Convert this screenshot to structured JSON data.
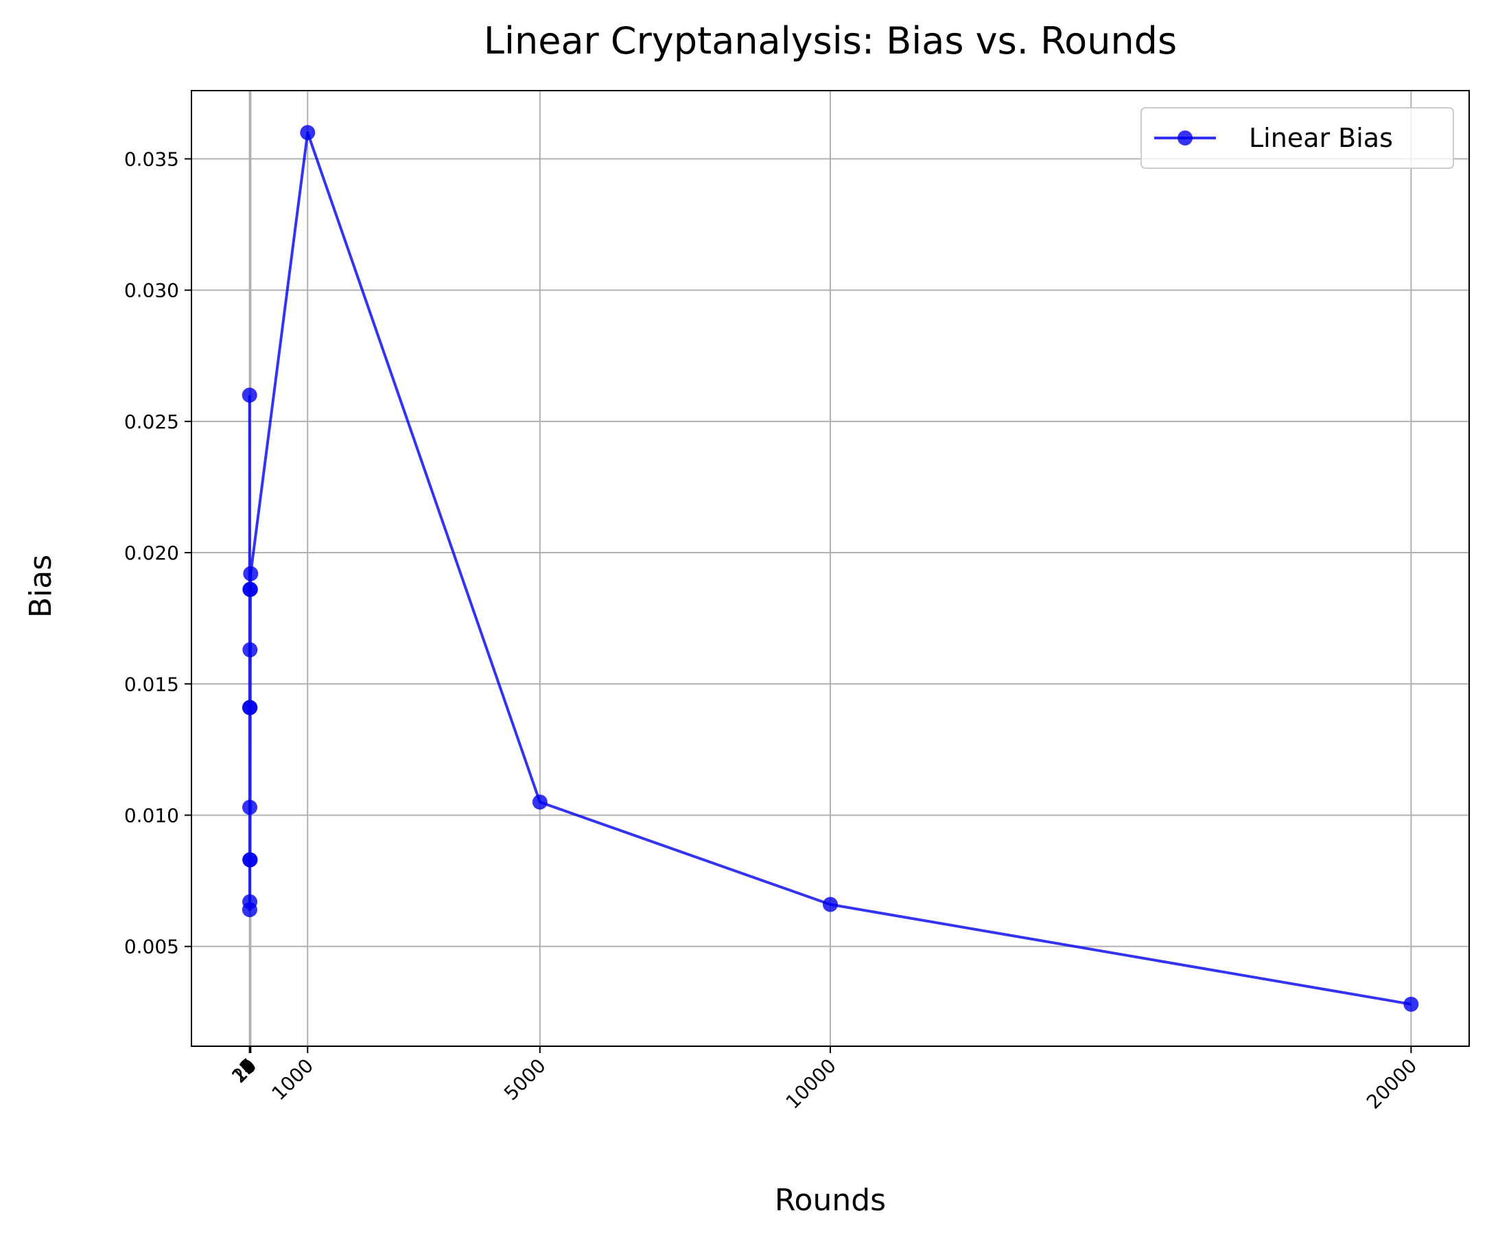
{
  "chart_data": {
    "type": "line",
    "title": "Linear Cryptanalysis: Bias vs. Rounds",
    "xlabel": "Rounds",
    "ylabel": "Bias",
    "xlim": [
      -1000,
      21000
    ],
    "ylim": [
      0.0012,
      0.0376
    ],
    "xticks": [
      1,
      2,
      3,
      4,
      5,
      6,
      7,
      8,
      9,
      10,
      15,
      20,
      1000,
      5000,
      10000,
      20000
    ],
    "yticks": [
      0.005,
      0.01,
      0.015,
      0.02,
      0.025,
      0.03,
      0.035
    ],
    "ytick_labels": [
      "0.005",
      "0.010",
      "0.015",
      "0.020",
      "0.025",
      "0.030",
      "0.035"
    ],
    "grid": true,
    "legend_position": "top-right",
    "series": [
      {
        "name": "Linear Bias",
        "color": "#0000ee",
        "marker": "circle",
        "x": [
          1,
          2,
          3,
          4,
          5,
          6,
          7,
          8,
          9,
          10,
          15,
          20,
          1000,
          5000,
          10000,
          20000
        ],
        "y": [
          0.026,
          0.0141,
          0.0064,
          0.0103,
          0.0067,
          0.0083,
          0.0186,
          0.0163,
          0.0141,
          0.0083,
          0.0186,
          0.0192,
          0.036,
          0.0105,
          0.0066,
          0.0028
        ]
      }
    ]
  }
}
